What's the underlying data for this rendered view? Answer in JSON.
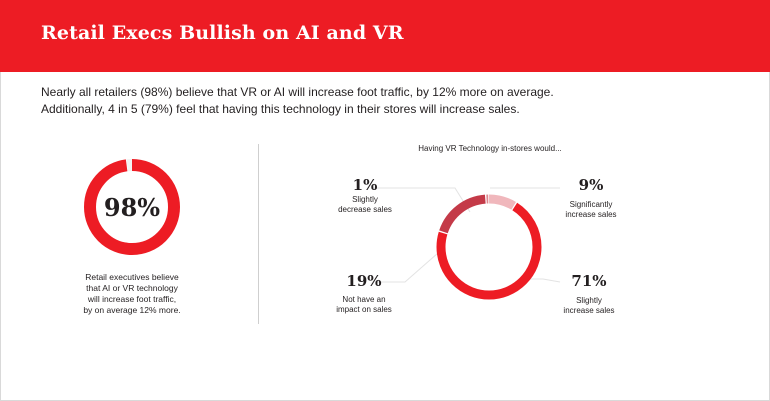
{
  "header": {
    "title": "Retail Execs Bullish on AI and VR"
  },
  "intro": {
    "line1": "Nearly all retailers (98%) believe that VR or AI will increase foot traffic, by 12% more on average.",
    "line2": "Additionally, 4 in 5 (79%) feel that having this technology in their stores will increase sales."
  },
  "left_stat": {
    "value": "98%",
    "caption_lines": [
      "Retail executives believe",
      "that AI or VR technology",
      "will increase foot traffic,",
      "by on average 12% more."
    ]
  },
  "colors": {
    "brand_red": "#ed1c24",
    "dark_red": "#c43a48",
    "pink": "#e0868f",
    "light_pink": "#f0b7bc",
    "remainder_gray": "#f2f2f2",
    "leader_gray": "#e3e3e3"
  },
  "chart_data": [
    {
      "type": "pie",
      "title": "",
      "slices": [
        {
          "label": "",
          "value": 98,
          "color": "#ed1c24"
        },
        {
          "label": "",
          "value": 2,
          "color": "#f2f2f2"
        }
      ]
    },
    {
      "type": "pie",
      "title": "Having VR Technology in-stores would...",
      "slices": [
        {
          "key": "sig",
          "pct": "9%",
          "caption_lines": [
            "Significantly",
            "increase sales"
          ],
          "value": 9,
          "color": "#f0b7bc"
        },
        {
          "key": "sli",
          "pct": "71%",
          "caption_lines": [
            "Slightly",
            "increase sales"
          ],
          "value": 71,
          "color": "#ed1c24"
        },
        {
          "key": "not",
          "pct": "19%",
          "caption_lines": [
            "Not have an",
            "impact on sales"
          ],
          "value": 19,
          "color": "#c43a48"
        },
        {
          "key": "dec",
          "pct": "1%",
          "caption_lines": [
            "Slightly",
            "decrease sales"
          ],
          "value": 1,
          "color": "#e0868f"
        }
      ]
    }
  ]
}
